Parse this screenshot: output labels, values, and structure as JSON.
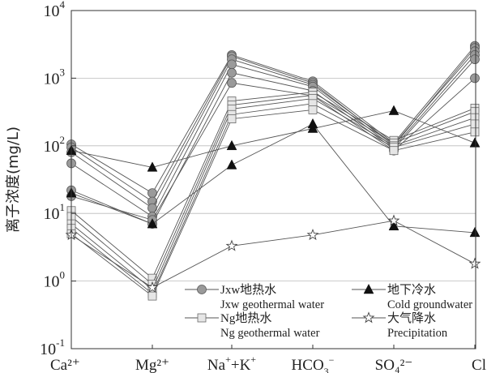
{
  "chart_data": {
    "type": "line",
    "ylabel": "离子浓度(mg/L)",
    "y_scale": "log",
    "ylim": [
      0.1,
      10000
    ],
    "grid": "horizontal",
    "categories": [
      "Ca²⁺",
      "Mg²⁺",
      "Na⁺+K⁺",
      "HCO₃⁻",
      "SO₄²⁻",
      "Cl"
    ],
    "y_tick_labels": [
      {
        "value": 0.1,
        "base": "10",
        "exp": "-1"
      },
      {
        "value": 1,
        "base": "10",
        "exp": "0"
      },
      {
        "value": 10,
        "base": "10",
        "exp": "1"
      },
      {
        "value": 100,
        "base": "10",
        "exp": "2"
      },
      {
        "value": 1000,
        "base": "10",
        "exp": "3"
      },
      {
        "value": 10000,
        "base": "10",
        "exp": "4"
      }
    ],
    "legend": {
      "placement": "bottom",
      "entries": [
        {
          "key": "jxw",
          "cn": "Jxw地热水",
          "en": "Jxw geothermal water"
        },
        {
          "key": "cold",
          "cn": "地下冷水",
          "en": "Cold groundwater"
        },
        {
          "key": "ng",
          "cn": "Ng地热水",
          "en": "Ng geothermal water"
        },
        {
          "key": "precip",
          "cn": "大气降水",
          "en": "Precipitation"
        }
      ]
    },
    "series": [
      {
        "group": "jxw",
        "marker": "circle",
        "values": [
          105,
          20,
          2200,
          900,
          110,
          3000
        ]
      },
      {
        "group": "jxw",
        "marker": "circle",
        "values": [
          95,
          15,
          2100,
          850,
          100,
          2800
        ]
      },
      {
        "group": "jxw",
        "marker": "circle",
        "values": [
          80,
          12,
          1900,
          800,
          105,
          2500
        ]
      },
      {
        "group": "jxw",
        "marker": "circle",
        "values": [
          55,
          9,
          1600,
          750,
          95,
          2200
        ]
      },
      {
        "group": "jxw",
        "marker": "circle",
        "values": [
          22,
          7,
          1200,
          650,
          90,
          1900
        ]
      },
      {
        "group": "jxw",
        "marker": "circle",
        "values": [
          18,
          8,
          850,
          550,
          85,
          1000
        ]
      },
      {
        "group": "ng",
        "marker": "square",
        "values": [
          11,
          1.1,
          460,
          620,
          120,
          360
        ]
      },
      {
        "group": "ng",
        "marker": "square",
        "values": [
          9,
          0.9,
          400,
          560,
          110,
          320
        ]
      },
      {
        "group": "ng",
        "marker": "square",
        "values": [
          7,
          0.75,
          350,
          500,
          100,
          260
        ]
      },
      {
        "group": "ng",
        "marker": "square",
        "values": [
          6,
          0.65,
          290,
          420,
          95,
          210
        ]
      },
      {
        "group": "ng",
        "marker": "square",
        "values": [
          5,
          0.6,
          250,
          340,
          85,
          160
        ]
      },
      {
        "group": "cold",
        "marker": "triangle",
        "values": [
          85,
          48,
          100,
          180,
          330,
          110
        ]
      },
      {
        "group": "cold",
        "marker": "triangle",
        "values": [
          20,
          7,
          52,
          210,
          6.5,
          5.2
        ]
      },
      {
        "group": "precip",
        "marker": "star",
        "values": [
          4.8,
          0.8,
          3.3,
          4.8,
          7.8,
          1.8
        ]
      }
    ]
  }
}
